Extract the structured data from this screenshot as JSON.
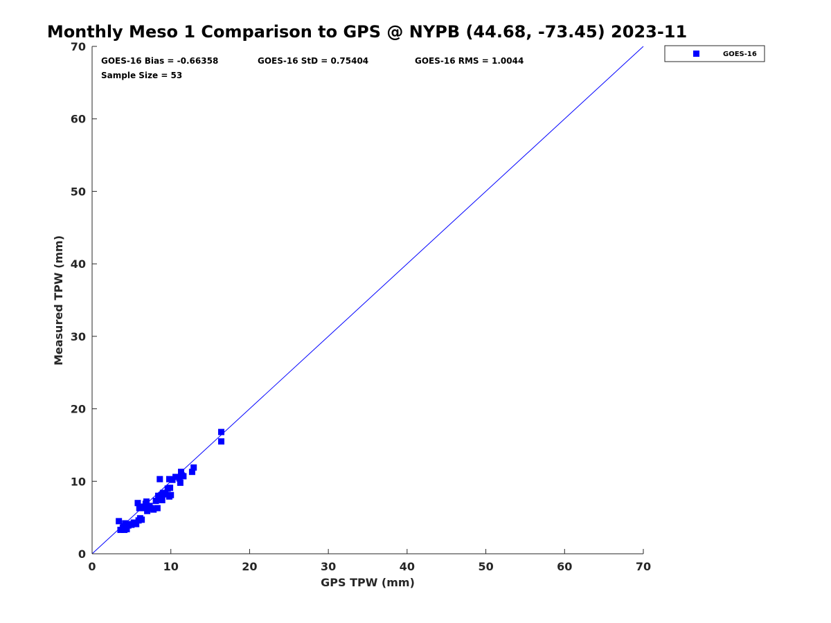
{
  "chart_data": {
    "type": "scatter",
    "title": "Monthly Meso 1 Comparison to GPS @ NYPB (44.68, -73.45) 2023-11",
    "xlabel": "GPS TPW (mm)",
    "ylabel": "Measured TPW (mm)",
    "xlim": [
      0,
      70
    ],
    "ylim": [
      0,
      70
    ],
    "x_ticks": [
      "0",
      "10",
      "20",
      "30",
      "40",
      "50",
      "60",
      "70"
    ],
    "y_ticks": [
      "0",
      "10",
      "20",
      "30",
      "40",
      "50",
      "60",
      "70"
    ],
    "grid": false,
    "legend_position": "outside-top-right",
    "stats": {
      "bias": "GOES-16 Bias = -0.66358",
      "std": "GOES-16 StD = 0.75404",
      "rms": "GOES-16 RMS = 1.0044",
      "sample": "Sample Size = 53"
    },
    "reference_line": {
      "x": [
        0,
        70
      ],
      "y": [
        0,
        70
      ],
      "color": "#0000ff"
    },
    "series": [
      {
        "name": "GOES-16",
        "color": "#0000ff",
        "marker": "square",
        "x": [
          3.4,
          3.6,
          3.9,
          4.1,
          4.4,
          4.2,
          4.6,
          4.8,
          5.0,
          5.3,
          5.6,
          5.9,
          6.1,
          6.3,
          5.8,
          6.0,
          6.4,
          6.7,
          6.9,
          7.0,
          7.2,
          6.8,
          7.5,
          7.8,
          8.1,
          8.3,
          8.5,
          8.4,
          8.8,
          8.6,
          9.0,
          9.3,
          9.6,
          9.9,
          9.8,
          10.0,
          9.8,
          10.2,
          10.6,
          11.0,
          11.2,
          11.4,
          11.6,
          11.3,
          11.1,
          12.7,
          12.9,
          16.4,
          16.4,
          5.5,
          4.0,
          7.3,
          8.9
        ],
        "y": [
          4.5,
          3.3,
          3.6,
          3.3,
          3.4,
          4.2,
          3.9,
          4.1,
          4.0,
          4.3,
          4.1,
          4.6,
          4.9,
          4.7,
          7.0,
          6.3,
          6.5,
          6.3,
          7.2,
          5.9,
          6.5,
          6.9,
          6.3,
          6.1,
          7.3,
          6.3,
          7.5,
          8.0,
          8.1,
          10.3,
          8.4,
          8.2,
          9.0,
          9.1,
          7.9,
          8.1,
          10.3,
          10.2,
          10.6,
          10.6,
          9.8,
          10.8,
          10.7,
          11.3,
          10.4,
          11.3,
          11.9,
          16.8,
          15.5,
          4.2,
          3.8,
          6.6,
          7.4
        ]
      }
    ]
  }
}
